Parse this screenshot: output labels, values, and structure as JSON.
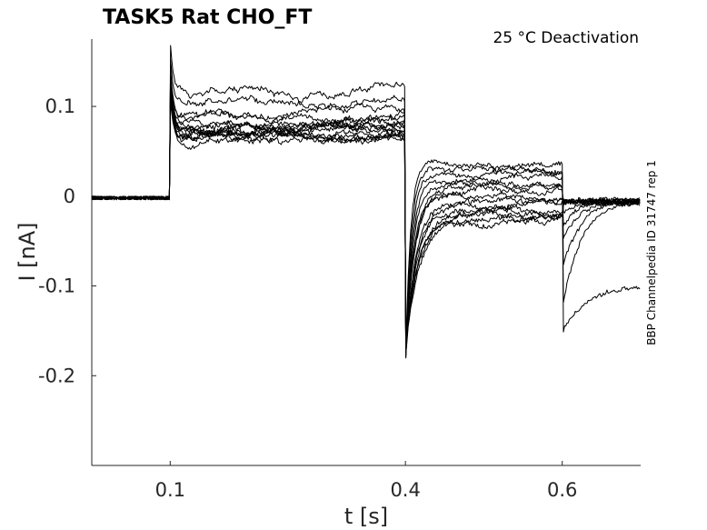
{
  "chart_data": {
    "type": "line",
    "title": "TASK5  Rat  CHO_FT",
    "subtitle": "25 °C  Deactivation",
    "side_label": "BBP Channelpedia ID 31747 rep 1",
    "xlabel": "t [s]",
    "ylabel": "I [nA]",
    "xlim": [
      0.0,
      0.7
    ],
    "ylim": [
      -0.3,
      0.175
    ],
    "xticks": [
      0.1,
      0.4,
      0.6
    ],
    "xtick_labels": [
      "0.1",
      "0.4",
      "0.6"
    ],
    "yticks": [
      0.1,
      0,
      -0.1,
      -0.2
    ],
    "ytick_labels": [
      "0.1",
      "0",
      "-0.1",
      "-0.2"
    ],
    "grid": false,
    "legend": "none",
    "line_color": "#000000",
    "protocol_times": {
      "step_on": 0.1,
      "step_test": 0.4,
      "step_end": 0.6
    },
    "baseline_current": -0.002,
    "series": [
      {
        "step1": 0.118,
        "step2": 0.033,
        "tail_peak": -0.155,
        "tail_final": -0.1
      },
      {
        "step1": 0.105,
        "step2": 0.03,
        "tail_peak": -0.12,
        "tail_final": -0.003
      },
      {
        "step1": 0.095,
        "step2": 0.025,
        "tail_peak": -0.08,
        "tail_final": -0.003
      },
      {
        "step1": 0.09,
        "step2": 0.02,
        "tail_peak": -0.05,
        "tail_final": -0.004
      },
      {
        "step1": 0.085,
        "step2": 0.015,
        "tail_peak": -0.03,
        "tail_final": -0.004
      },
      {
        "step1": 0.082,
        "step2": 0.01,
        "tail_peak": -0.02,
        "tail_final": -0.005
      },
      {
        "step1": 0.08,
        "step2": 0.005,
        "tail_peak": -0.01,
        "tail_final": -0.005
      },
      {
        "step1": 0.078,
        "step2": 0.0,
        "tail_peak": -0.005,
        "tail_final": -0.005
      },
      {
        "step1": 0.076,
        "step2": -0.005,
        "tail_peak": -0.005,
        "tail_final": -0.006
      },
      {
        "step1": 0.074,
        "step2": -0.01,
        "tail_peak": -0.006,
        "tail_final": -0.006
      },
      {
        "step1": 0.072,
        "step2": -0.015,
        "tail_peak": -0.007,
        "tail_final": -0.006
      },
      {
        "step1": 0.07,
        "step2": -0.02,
        "tail_peak": -0.008,
        "tail_final": -0.007
      },
      {
        "step1": 0.068,
        "step2": -0.022,
        "tail_peak": -0.009,
        "tail_final": -0.007
      },
      {
        "step1": 0.065,
        "step2": -0.025,
        "tail_peak": -0.01,
        "tail_final": -0.007
      },
      {
        "step1": 0.06,
        "step2": -0.028,
        "tail_peak": -0.01,
        "tail_final": -0.008
      }
    ]
  }
}
